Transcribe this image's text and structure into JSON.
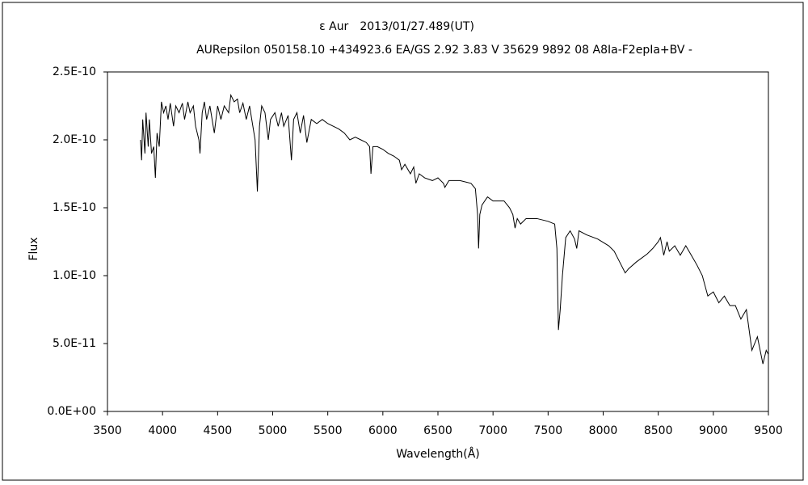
{
  "chart_data": {
    "type": "line",
    "title": "ε Aur　2013/01/27.489(UT)",
    "subtitle": "AURepsilon 050158.10 +434923.6 EA/GS 2.92 3.83 V 35629 9892 08 A8Ia-F2epIa+BV -",
    "xlabel": "Wavelength(Å)",
    "ylabel": "Flux",
    "xlim": [
      3500,
      9500
    ],
    "xticks": [
      3500,
      4000,
      4500,
      5000,
      5500,
      6000,
      6500,
      7000,
      7500,
      8000,
      8500,
      9000,
      9500
    ],
    "ylim": [
      0,
      2.5e-10
    ],
    "yticks": [
      {
        "value": 0,
        "label": "0.0E+00"
      },
      {
        "value": 5e-11,
        "label": "5.0E-11"
      },
      {
        "value": 1e-10,
        "label": "1.0E-10"
      },
      {
        "value": 1.5e-10,
        "label": "1.5E-10"
      },
      {
        "value": 2e-10,
        "label": "2.0E-10"
      },
      {
        "value": 2.5e-10,
        "label": "2.5E-10"
      }
    ],
    "grid": false,
    "color": "#000000",
    "x": [
      3800,
      3810,
      3820,
      3840,
      3850,
      3870,
      3880,
      3900,
      3920,
      3935,
      3950,
      3970,
      3990,
      4010,
      4030,
      4050,
      4070,
      4100,
      4120,
      4150,
      4180,
      4200,
      4230,
      4250,
      4280,
      4300,
      4330,
      4340,
      4360,
      4380,
      4400,
      4430,
      4470,
      4500,
      4530,
      4560,
      4600,
      4620,
      4650,
      4680,
      4700,
      4730,
      4760,
      4790,
      4820,
      4840,
      4861,
      4880,
      4900,
      4930,
      4960,
      4980,
      5020,
      5050,
      5080,
      5100,
      5140,
      5170,
      5190,
      5220,
      5250,
      5280,
      5310,
      5350,
      5400,
      5450,
      5500,
      5550,
      5600,
      5650,
      5700,
      5750,
      5800,
      5850,
      5880,
      5892,
      5910,
      5950,
      6000,
      6050,
      6100,
      6150,
      6170,
      6200,
      6250,
      6280,
      6300,
      6330,
      6380,
      6450,
      6500,
      6550,
      6563,
      6600,
      6700,
      6800,
      6840,
      6860,
      6869,
      6880,
      6900,
      6950,
      7000,
      7050,
      7100,
      7150,
      7180,
      7200,
      7220,
      7250,
      7300,
      7400,
      7500,
      7560,
      7580,
      7594,
      7610,
      7630,
      7660,
      7700,
      7740,
      7760,
      7780,
      7850,
      7950,
      8050,
      8100,
      8150,
      8200,
      8230,
      8300,
      8400,
      8450,
      8500,
      8520,
      8550,
      8580,
      8600,
      8650,
      8700,
      8750,
      8800,
      8850,
      8900,
      8950,
      9000,
      9050,
      9100,
      9150,
      9200,
      9250,
      9300,
      9350,
      9400,
      9450,
      9480,
      9500
    ],
    "values": [
      2e-10,
      1.85e-10,
      2.15e-10,
      1.9e-10,
      2.2e-10,
      1.95e-10,
      2.15e-10,
      1.9e-10,
      1.95e-10,
      1.72e-10,
      2.05e-10,
      1.95e-10,
      2.28e-10,
      2.2e-10,
      2.25e-10,
      2.15e-10,
      2.27e-10,
      2.1e-10,
      2.25e-10,
      2.2e-10,
      2.27e-10,
      2.15e-10,
      2.28e-10,
      2.2e-10,
      2.25e-10,
      2.1e-10,
      2e-10,
      1.9e-10,
      2.2e-10,
      2.28e-10,
      2.15e-10,
      2.25e-10,
      2.05e-10,
      2.25e-10,
      2.15e-10,
      2.25e-10,
      2.2e-10,
      2.33e-10,
      2.28e-10,
      2.3e-10,
      2.2e-10,
      2.27e-10,
      2.15e-10,
      2.25e-10,
      2.1e-10,
      2e-10,
      1.62e-10,
      2.1e-10,
      2.25e-10,
      2.2e-10,
      2e-10,
      2.15e-10,
      2.2e-10,
      2.1e-10,
      2.2e-10,
      2.1e-10,
      2.18e-10,
      1.85e-10,
      2.15e-10,
      2.2e-10,
      2.05e-10,
      2.18e-10,
      1.98e-10,
      2.15e-10,
      2.12e-10,
      2.15e-10,
      2.12e-10,
      2.1e-10,
      2.08e-10,
      2.05e-10,
      2e-10,
      2.02e-10,
      2e-10,
      1.98e-10,
      1.95e-10,
      1.75e-10,
      1.95e-10,
      1.95e-10,
      1.93e-10,
      1.9e-10,
      1.88e-10,
      1.85e-10,
      1.78e-10,
      1.82e-10,
      1.75e-10,
      1.8e-10,
      1.68e-10,
      1.75e-10,
      1.72e-10,
      1.7e-10,
      1.72e-10,
      1.68e-10,
      1.65e-10,
      1.7e-10,
      1.7e-10,
      1.68e-10,
      1.64e-10,
      1.45e-10,
      1.2e-10,
      1.45e-10,
      1.52e-10,
      1.58e-10,
      1.55e-10,
      1.55e-10,
      1.55e-10,
      1.5e-10,
      1.45e-10,
      1.35e-10,
      1.42e-10,
      1.38e-10,
      1.42e-10,
      1.42e-10,
      1.4e-10,
      1.38e-10,
      1.2e-10,
      6e-11,
      7.5e-11,
      1e-10,
      1.28e-10,
      1.33e-10,
      1.27e-10,
      1.2e-10,
      1.33e-10,
      1.3e-10,
      1.27e-10,
      1.22e-10,
      1.18e-10,
      1.1e-10,
      1.02e-10,
      1.05e-10,
      1.1e-10,
      1.16e-10,
      1.2e-10,
      1.25e-10,
      1.28e-10,
      1.15e-10,
      1.25e-10,
      1.18e-10,
      1.22e-10,
      1.15e-10,
      1.22e-10,
      1.15e-10,
      1.08e-10,
      1e-10,
      8.5e-11,
      8.8e-11,
      8e-11,
      8.5e-11,
      7.8e-11,
      7.8e-11,
      6.8e-11,
      7.5e-11,
      4.5e-11,
      5.5e-11,
      3.5e-11,
      4.5e-11,
      4.2e-11
    ]
  }
}
